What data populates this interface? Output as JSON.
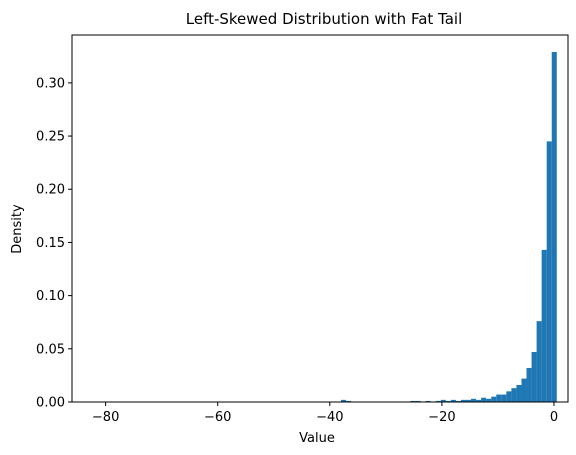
{
  "chart_data": {
    "type": "bar",
    "title": "Left-Skewed Distribution with Fat Tail",
    "xlabel": "Value",
    "ylabel": "Density",
    "xlim": [
      -86,
      2.5
    ],
    "ylim": [
      0,
      0.345
    ],
    "xticks": [
      -80,
      -60,
      -40,
      -20,
      0
    ],
    "xtick_labels": [
      "−80",
      "−60",
      "−40",
      "−20",
      "0"
    ],
    "yticks": [
      0,
      0.05,
      0.1,
      0.15,
      0.2,
      0.25,
      0.3
    ],
    "ytick_labels": [
      "0.00",
      "0.05",
      "0.10",
      "0.15",
      "0.20",
      "0.25",
      "0.30"
    ],
    "grid": false,
    "bar_color": "#1f77b4",
    "bins": [
      {
        "x0": -38.0,
        "x1": -37.1,
        "value": 0.002
      },
      {
        "x0": -37.1,
        "x1": -36.2,
        "value": 0.001
      },
      {
        "x0": -25.6,
        "x1": -24.7,
        "value": 0.001
      },
      {
        "x0": -24.7,
        "x1": -23.8,
        "value": 0.001
      },
      {
        "x0": -22.9,
        "x1": -22.0,
        "value": 0.001
      },
      {
        "x0": -21.1,
        "x1": -20.2,
        "value": 0.001
      },
      {
        "x0": -20.2,
        "x1": -19.3,
        "value": 0.002
      },
      {
        "x0": -19.3,
        "x1": -18.4,
        "value": 0.001
      },
      {
        "x0": -18.4,
        "x1": -17.5,
        "value": 0.002
      },
      {
        "x0": -17.5,
        "x1": -16.6,
        "value": 0.001
      },
      {
        "x0": -16.6,
        "x1": -15.7,
        "value": 0.002
      },
      {
        "x0": -15.7,
        "x1": -14.8,
        "value": 0.002
      },
      {
        "x0": -14.8,
        "x1": -13.9,
        "value": 0.003
      },
      {
        "x0": -13.9,
        "x1": -13.0,
        "value": 0.002
      },
      {
        "x0": -13.0,
        "x1": -12.1,
        "value": 0.004
      },
      {
        "x0": -12.1,
        "x1": -11.2,
        "value": 0.003
      },
      {
        "x0": -11.2,
        "x1": -10.3,
        "value": 0.005
      },
      {
        "x0": -10.3,
        "x1": -9.4,
        "value": 0.007
      },
      {
        "x0": -9.4,
        "x1": -8.5,
        "value": 0.007
      },
      {
        "x0": -8.5,
        "x1": -7.6,
        "value": 0.01
      },
      {
        "x0": -7.6,
        "x1": -6.7,
        "value": 0.013
      },
      {
        "x0": -6.7,
        "x1": -5.8,
        "value": 0.016
      },
      {
        "x0": -5.8,
        "x1": -4.9,
        "value": 0.022
      },
      {
        "x0": -4.9,
        "x1": -4.0,
        "value": 0.032
      },
      {
        "x0": -4.0,
        "x1": -3.1,
        "value": 0.047
      },
      {
        "x0": -3.1,
        "x1": -2.2,
        "value": 0.076
      },
      {
        "x0": -2.2,
        "x1": -1.3,
        "value": 0.143
      },
      {
        "x0": -1.3,
        "x1": -0.4,
        "value": 0.245
      },
      {
        "x0": -0.4,
        "x1": 0.5,
        "value": 0.329
      }
    ]
  }
}
